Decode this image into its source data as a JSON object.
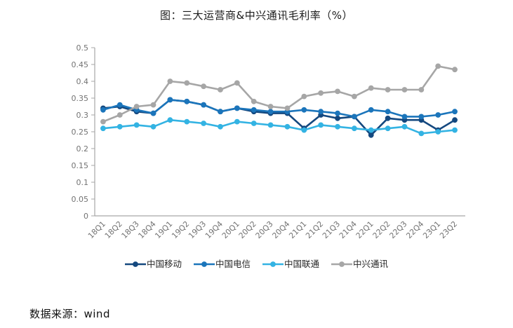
{
  "page": {
    "title": "图：三大运营商&中兴通讯毛利率（%）",
    "source": "数据来源：wind"
  },
  "chart_data": {
    "type": "line",
    "title": "图：三大运营商&中兴通讯毛利率（%）",
    "categories": [
      "18Q1",
      "18Q2",
      "18Q3",
      "18Q4",
      "19Q1",
      "19Q2",
      "19Q3",
      "19Q4",
      "20Q1",
      "20Q2",
      "20Q3",
      "20Q4",
      "21Q1",
      "21Q2",
      "21Q3",
      "21Q4",
      "22Q1",
      "22Q2",
      "22Q3",
      "22Q4",
      "23Q1",
      "23Q2"
    ],
    "series": [
      {
        "name": "中国移动",
        "color": "#14487f",
        "values": [
          0.32,
          0.325,
          0.31,
          0.305,
          0.345,
          0.34,
          0.33,
          0.31,
          0.32,
          0.31,
          0.305,
          0.305,
          0.26,
          0.3,
          0.29,
          0.295,
          0.24,
          0.29,
          0.285,
          0.285,
          0.255,
          0.285
        ]
      },
      {
        "name": "中国电信",
        "color": "#1b75bb",
        "values": [
          0.315,
          0.33,
          0.315,
          0.305,
          0.345,
          0.34,
          0.33,
          0.31,
          0.32,
          0.315,
          0.31,
          0.31,
          0.315,
          0.31,
          0.305,
          0.295,
          0.315,
          0.31,
          0.295,
          0.295,
          0.3,
          0.31
        ]
      },
      {
        "name": "中国联通",
        "color": "#33b3e3",
        "values": [
          0.26,
          0.265,
          0.27,
          0.265,
          0.285,
          0.28,
          0.275,
          0.265,
          0.28,
          0.275,
          0.27,
          0.265,
          0.255,
          0.27,
          0.265,
          0.26,
          0.255,
          0.26,
          0.265,
          0.245,
          0.25,
          0.255
        ]
      },
      {
        "name": "中兴通讯",
        "color": "#a6a6a6",
        "values": [
          0.28,
          0.3,
          0.325,
          0.33,
          0.4,
          0.395,
          0.385,
          0.375,
          0.395,
          0.34,
          0.325,
          0.32,
          0.355,
          0.365,
          0.37,
          0.355,
          0.38,
          0.375,
          0.375,
          0.375,
          0.445,
          0.435
        ]
      }
    ],
    "ylim": [
      0,
      0.5
    ],
    "yticks": [
      "0",
      "0.05",
      "0.1",
      "0.15",
      "0.2",
      "0.25",
      "0.3",
      "0.35",
      "0.4",
      "0.45",
      "0.5"
    ],
    "xlabel": "",
    "ylabel": "",
    "grid": false,
    "legend_position": "bottom",
    "axis_color": "#a6a6a6",
    "tick_label_color": "#737373"
  }
}
